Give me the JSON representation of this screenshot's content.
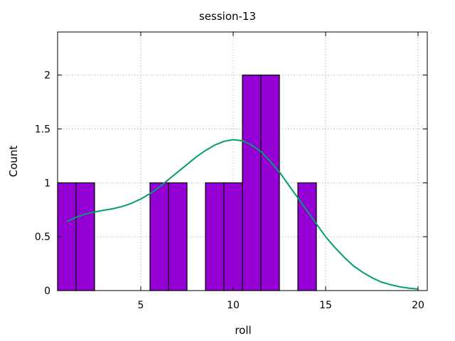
{
  "chart_data": {
    "type": "bar",
    "title": "session-13",
    "xlabel": "roll",
    "ylabel": "Count",
    "xlim": [
      0.5,
      20.5
    ],
    "ylim": [
      0,
      2.4
    ],
    "xticks": [
      5,
      10,
      15,
      20
    ],
    "yticks": [
      0,
      0.5,
      1,
      1.5,
      2
    ],
    "grid": true,
    "bar_color": "#9400d3",
    "curve_color": "#009e73",
    "bins": [
      {
        "x": 1,
        "count": 1
      },
      {
        "x": 2,
        "count": 1
      },
      {
        "x": 6,
        "count": 1
      },
      {
        "x": 7,
        "count": 1
      },
      {
        "x": 9,
        "count": 1
      },
      {
        "x": 10,
        "count": 1
      },
      {
        "x": 11,
        "count": 2
      },
      {
        "x": 12,
        "count": 2
      },
      {
        "x": 14,
        "count": 1
      }
    ],
    "density_curve": [
      [
        1,
        0.64
      ],
      [
        1.5,
        0.68
      ],
      [
        2,
        0.71
      ],
      [
        2.5,
        0.73
      ],
      [
        3,
        0.745
      ],
      [
        3.5,
        0.76
      ],
      [
        4,
        0.78
      ],
      [
        4.5,
        0.81
      ],
      [
        5,
        0.85
      ],
      [
        5.5,
        0.9
      ],
      [
        6,
        0.96
      ],
      [
        6.5,
        1.03
      ],
      [
        7,
        1.1
      ],
      [
        7.5,
        1.17
      ],
      [
        8,
        1.24
      ],
      [
        8.5,
        1.3
      ],
      [
        9,
        1.35
      ],
      [
        9.5,
        1.385
      ],
      [
        10,
        1.4
      ],
      [
        10.5,
        1.39
      ],
      [
        11,
        1.35
      ],
      [
        11.5,
        1.29
      ],
      [
        12,
        1.2
      ],
      [
        12.5,
        1.1
      ],
      [
        13,
        0.98
      ],
      [
        13.5,
        0.86
      ],
      [
        14,
        0.74
      ],
      [
        14.5,
        0.62
      ],
      [
        15,
        0.5
      ],
      [
        15.5,
        0.4
      ],
      [
        16,
        0.31
      ],
      [
        16.5,
        0.23
      ],
      [
        17,
        0.17
      ],
      [
        17.5,
        0.12
      ],
      [
        18,
        0.08
      ],
      [
        18.5,
        0.055
      ],
      [
        19,
        0.035
      ],
      [
        19.5,
        0.022
      ],
      [
        20,
        0.014
      ]
    ]
  }
}
